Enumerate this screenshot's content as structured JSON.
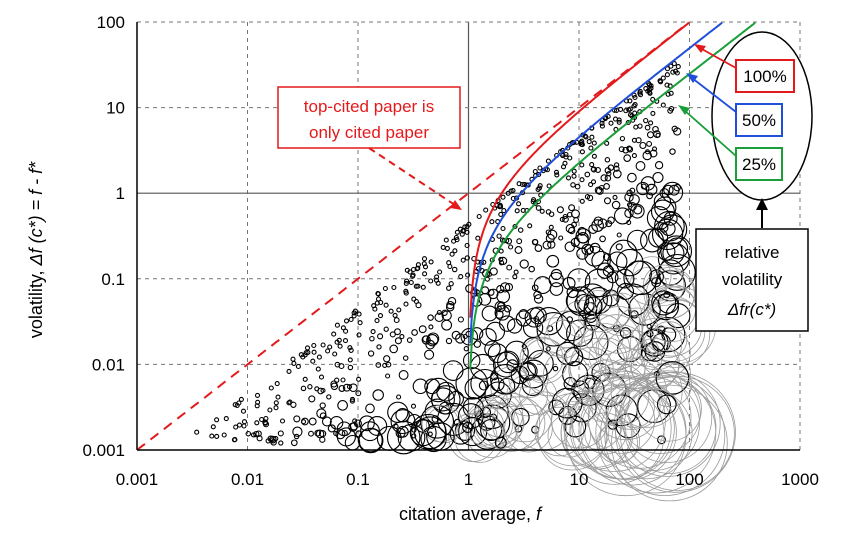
{
  "chart_data": {
    "type": "scatter",
    "x_scale": "log",
    "y_scale": "log",
    "xlim": [
      0.001,
      1000
    ],
    "ylim": [
      0.001,
      100
    ],
    "x_ticks": [
      "0.001",
      "0.01",
      "0.1",
      "1",
      "10",
      "100",
      "1000"
    ],
    "y_ticks": [
      "0.001",
      "0.01",
      "0.1",
      "1",
      "10",
      "100"
    ],
    "x_tick_values": [
      0.001,
      0.01,
      0.1,
      1,
      10,
      100,
      1000
    ],
    "y_tick_values": [
      0.001,
      0.01,
      0.1,
      1,
      10,
      100
    ],
    "xlabel_main": "citation average, ",
    "xlabel_var": "f",
    "ylabel_main": "volatility, ",
    "ylabel_var": "Δf (c*) = f - f*",
    "grid": true,
    "reference_lines": [
      {
        "label": "top-cited paper is only cited paper",
        "style": "dashed",
        "color": "#e31a1c",
        "ratio": 1.0,
        "dx": 0.0
      },
      {
        "label": "100%",
        "style": "solid",
        "color": "#e31a1c",
        "ratio": 1.0,
        "dx": 1.0
      },
      {
        "label": "50%",
        "style": "solid",
        "color": "#1f4fd8",
        "ratio": 0.5,
        "dx": 1.0
      },
      {
        "label": "25%",
        "style": "solid",
        "color": "#1a9e3a",
        "ratio": 0.25,
        "dx": 1.0
      }
    ],
    "cloud": {
      "points": 900,
      "x_log_range": [
        -2.5,
        1.9
      ],
      "size_range": [
        2,
        60
      ],
      "color": "#000000"
    }
  },
  "annotations": {
    "top_cited_line1": "top-cited paper is",
    "top_cited_line2": "only cited paper",
    "pct_100": "100%",
    "pct_50": "50%",
    "pct_25": "25%",
    "relative_line1": "relative",
    "relative_line2": "volatility",
    "relative_line3": "Δfr(c*)"
  }
}
